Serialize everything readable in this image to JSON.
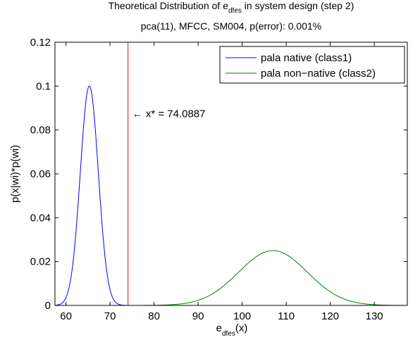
{
  "chart_data": {
    "type": "line",
    "title": {
      "line1_pre": "Theoretical Distribution of e",
      "line1_sub": "dfes",
      "line1_post": " in system design (step 2)",
      "line2": "pca(11), MFCC, SM004, p(error): 0.001%"
    },
    "xlabel": {
      "main": "e",
      "sub": "dfes",
      "post": "(x)"
    },
    "ylabel": "p(x|wi)*p(wi)",
    "xlim": [
      57.5,
      137.5
    ],
    "ylim": [
      0,
      0.12
    ],
    "xticks": [
      60,
      70,
      80,
      90,
      100,
      110,
      120,
      130
    ],
    "yticks": [
      0,
      0.02,
      0.04,
      0.06,
      0.08,
      0.1,
      0.12
    ],
    "ytick_labels": [
      "0",
      "0.02",
      "0.04",
      "0.06",
      "0.08",
      "0.1",
      "0.12"
    ],
    "grid": false,
    "legend_position": "top-right",
    "series": [
      {
        "name": "pala native (class1)",
        "color": "#0000ff",
        "distribution": {
          "kind": "gaussian",
          "mean": 65.3,
          "std": 2.05,
          "peak": 0.1
        },
        "x_range": [
          57.5,
          75
        ]
      },
      {
        "name": "pala non−native (class2)",
        "color": "#008000",
        "distribution": {
          "kind": "gaussian",
          "mean": 107,
          "std": 7.8,
          "peak": 0.025
        },
        "x_range": [
          75,
          137.5
        ]
      }
    ],
    "threshold": {
      "x": 74.0887,
      "color": "#ff0000",
      "label": "← x* = 74.0887"
    }
  }
}
